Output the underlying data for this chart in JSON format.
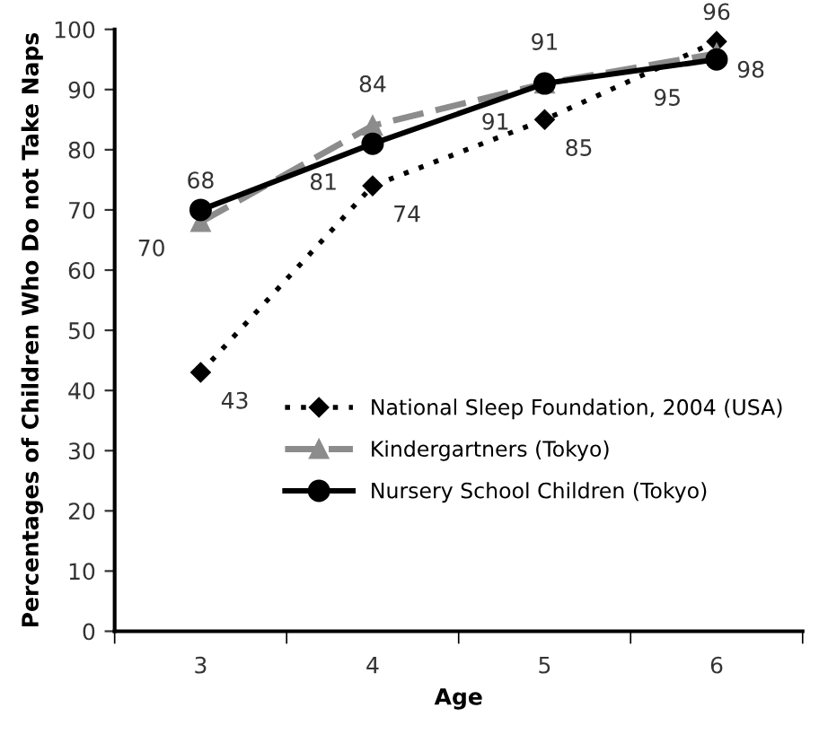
{
  "chart_data": {
    "type": "line",
    "xlabel": "Age",
    "ylabel": "Percentages of Children Who Do not Take Naps",
    "categories": [
      "3",
      "4",
      "5",
      "6"
    ],
    "ylim": [
      0,
      100
    ],
    "yticks": [
      0,
      10,
      20,
      30,
      40,
      50,
      60,
      70,
      80,
      90,
      100
    ],
    "grid": false,
    "legend": "right",
    "data_labels": true,
    "series": [
      {
        "name": "National Sleep Foundation, 2004 (USA)",
        "color": "#000000",
        "values": [
          43,
          74,
          85,
          98
        ],
        "marker": "diamond",
        "line_style": "dotted"
      },
      {
        "name": "Kindergartners (Tokyo)",
        "color": "#8c8c8c",
        "values": [
          68,
          84,
          91,
          96
        ],
        "marker": "triangle",
        "line_style": "dashed"
      },
      {
        "name": "Nursery School Children (Tokyo)",
        "color": "#000000",
        "values": [
          70,
          81,
          91,
          95
        ],
        "marker": "circle",
        "line_style": "solid"
      }
    ]
  }
}
